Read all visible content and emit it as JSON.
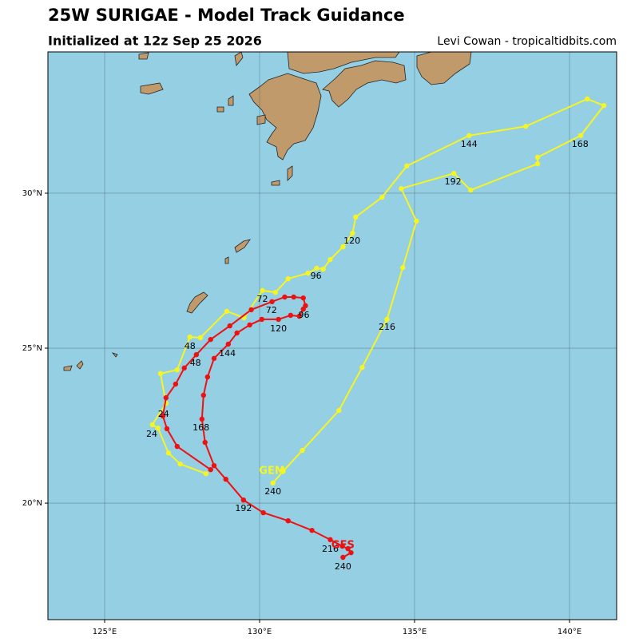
{
  "chart_data": {
    "type": "track",
    "title": "25W SURIGAE - Model Track Guidance",
    "subtitle": "Initialized at 12z Sep 25 2026",
    "credit": "Levi Cowan - tropicaltidbits.com",
    "xlim": [
      123.17,
      141.52
    ],
    "ylim": [
      16.24,
      34.56
    ],
    "xticks": [
      {
        "value": 125,
        "label": "125°E"
      },
      {
        "value": 130,
        "label": "130°E"
      },
      {
        "value": 135,
        "label": "135°E"
      },
      {
        "value": 140,
        "label": "140°E"
      }
    ],
    "yticks": [
      {
        "value": 20,
        "label": "20°N"
      },
      {
        "value": 25,
        "label": "25°N"
      },
      {
        "value": 30,
        "label": "30°N"
      }
    ],
    "grid": true,
    "series": [
      {
        "name": "GEM",
        "color": "#f5f523",
        "name_at": [
          130.4,
          21.03
        ],
        "x": [
          128.27,
          127.44,
          127.06,
          126.72,
          126.54,
          126.98,
          126.8,
          127.34,
          127.75,
          128.09,
          128.94,
          129.5,
          130.09,
          130.51,
          130.92,
          131.56,
          131.84,
          132.05,
          132.28,
          132.69,
          133.0,
          133.1,
          133.95,
          134.75,
          136.76,
          138.59,
          140.57,
          141.11,
          140.36,
          138.97,
          138.97,
          136.81,
          136.27,
          134.57,
          135.06,
          134.62,
          134.11,
          133.31,
          132.56,
          131.38,
          130.76,
          130.43
        ],
        "values": [
          20.95,
          21.26,
          21.62,
          22.42,
          22.53,
          23.22,
          24.18,
          24.3,
          25.36,
          25.34,
          26.19,
          25.98,
          26.86,
          26.8,
          27.24,
          27.42,
          27.58,
          27.55,
          27.86,
          28.27,
          28.71,
          29.23,
          29.87,
          30.88,
          31.86,
          32.16,
          33.04,
          32.83,
          31.86,
          31.16,
          30.95,
          30.1,
          30.64,
          30.15,
          29.1,
          27.6,
          25.93,
          24.38,
          22.99,
          21.7,
          21.03,
          20.65
        ],
        "labels": [
          {
            "text": "24",
            "x": 126.52,
            "y": 22.22
          },
          {
            "text": "48",
            "x": 127.75,
            "y": 25.05
          },
          {
            "text": "72",
            "x": 130.09,
            "y": 26.57
          },
          {
            "text": "96",
            "x": 131.82,
            "y": 27.32
          },
          {
            "text": "120",
            "x": 132.98,
            "y": 28.45
          },
          {
            "text": "144",
            "x": 136.76,
            "y": 31.57
          },
          {
            "text": "168",
            "x": 140.34,
            "y": 31.57
          },
          {
            "text": "192",
            "x": 136.24,
            "y": 30.36
          },
          {
            "text": "216",
            "x": 134.11,
            "y": 25.67
          },
          {
            "text": "240",
            "x": 130.43,
            "y": 20.36
          }
        ]
      },
      {
        "name": "GFS",
        "color": "#ee1111",
        "name_at": [
          132.69,
          18.64
        ],
        "x": [
          128.42,
          127.34,
          127.01,
          126.88,
          126.98,
          127.29,
          127.57,
          127.96,
          128.42,
          129.04,
          129.73,
          130.4,
          130.81,
          131.1,
          131.41,
          131.48,
          131.41,
          131.28,
          131.0,
          130.61,
          130.07,
          129.68,
          129.27,
          128.99,
          128.53,
          128.32,
          128.19,
          128.14,
          128.24,
          128.53,
          128.91,
          129.48,
          130.12,
          130.92,
          131.69,
          132.28,
          132.67,
          132.85,
          132.95,
          132.69
        ],
        "values": [
          21.08,
          21.83,
          22.4,
          22.81,
          23.4,
          23.84,
          24.36,
          24.79,
          25.28,
          25.72,
          26.24,
          26.5,
          26.65,
          26.65,
          26.62,
          26.37,
          26.26,
          26.03,
          26.06,
          25.93,
          25.93,
          25.75,
          25.49,
          25.13,
          24.67,
          24.07,
          23.48,
          22.71,
          21.96,
          21.21,
          20.77,
          20.1,
          19.69,
          19.43,
          19.12,
          18.82,
          18.61,
          18.53,
          18.4,
          18.25
        ],
        "labels": [
          {
            "text": "24",
            "x": 126.9,
            "y": 22.86
          },
          {
            "text": "48",
            "x": 127.93,
            "y": 24.51
          },
          {
            "text": "72",
            "x": 130.38,
            "y": 26.21
          },
          {
            "text": "96",
            "x": 131.43,
            "y": 26.06
          },
          {
            "text": "120",
            "x": 130.61,
            "y": 25.62
          },
          {
            "text": "144",
            "x": 128.96,
            "y": 24.82
          },
          {
            "text": "168",
            "x": 128.11,
            "y": 22.42
          },
          {
            "text": "192",
            "x": 129.48,
            "y": 19.82
          },
          {
            "text": "216",
            "x": 132.28,
            "y": 18.51
          },
          {
            "text": "240",
            "x": 132.69,
            "y": 17.94
          }
        ]
      }
    ]
  }
}
